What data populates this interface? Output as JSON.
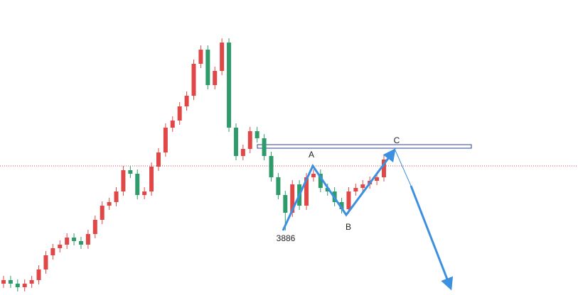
{
  "chart_data": {
    "type": "candlestick",
    "categories": [
      null,
      null,
      null,
      null,
      null,
      null,
      null,
      null,
      null,
      null,
      null,
      null,
      null,
      null,
      null,
      null,
      null,
      null,
      null,
      null,
      null,
      null,
      null,
      null,
      null,
      null,
      null,
      null,
      null,
      null,
      null,
      null,
      null,
      null,
      null,
      null,
      null,
      null,
      null,
      null,
      null,
      null,
      null,
      null,
      null,
      null,
      null,
      null,
      null,
      null,
      null,
      null,
      null,
      null,
      null
    ],
    "open": [
      3511,
      3536,
      3511,
      3486,
      3511,
      3536,
      3611,
      3711,
      3761,
      3786,
      3836,
      3811,
      3786,
      3861,
      3961,
      4061,
      4086,
      4161,
      4311,
      4286,
      4136,
      4161,
      4336,
      4436,
      4611,
      4661,
      4761,
      4836,
      5061,
      5161,
      4911,
      5011,
      5211,
      4611,
      4411,
      4461,
      4586,
      4536,
      4411,
      4261,
      4136,
      4011,
      4211,
      4061,
      4261,
      4286,
      4186,
      4161,
      4086,
      4036,
      4161,
      4186,
      4211,
      4236,
      4261
    ],
    "high": [
      3566,
      3566,
      3541,
      3541,
      3566,
      3641,
      3741,
      3791,
      3816,
      3866,
      3866,
      3841,
      3891,
      3991,
      4091,
      4116,
      4191,
      4341,
      4341,
      4316,
      4191,
      4366,
      4466,
      4641,
      4691,
      4791,
      4866,
      5091,
      5191,
      5191,
      5041,
      5241,
      5241,
      4641,
      4491,
      4616,
      4616,
      4566,
      4441,
      4291,
      4166,
      4241,
      4241,
      4291,
      4316,
      4316,
      4216,
      4191,
      4116,
      4191,
      4216,
      4241,
      4266,
      4291,
      4416
    ],
    "low": [
      3481,
      3481,
      3456,
      3456,
      3481,
      3506,
      3581,
      3681,
      3731,
      3756,
      3781,
      3756,
      3756,
      3831,
      3931,
      4031,
      4056,
      4131,
      4256,
      4106,
      4106,
      4131,
      4306,
      4406,
      4581,
      4631,
      4731,
      4806,
      5031,
      4881,
      4881,
      4981,
      4581,
      4381,
      4381,
      4431,
      4506,
      4381,
      4231,
      4106,
      3886,
      3981,
      4031,
      4031,
      4231,
      4156,
      4131,
      4056,
      4006,
      4006,
      4131,
      4156,
      4181,
      4206,
      4231
    ],
    "close": [
      3536,
      3511,
      3486,
      3511,
      3536,
      3611,
      3711,
      3761,
      3786,
      3836,
      3811,
      3786,
      3861,
      3961,
      4061,
      4086,
      4161,
      4311,
      4286,
      4136,
      4161,
      4336,
      4436,
      4611,
      4661,
      4761,
      4836,
      5061,
      5161,
      4911,
      5011,
      5211,
      4611,
      4411,
      4461,
      4586,
      4536,
      4411,
      4261,
      4136,
      4011,
      4211,
      4061,
      4261,
      4286,
      4186,
      4161,
      4086,
      4036,
      4161,
      4186,
      4211,
      4236,
      4261,
      4386
    ],
    "up_color": "#e04848",
    "down_color": "#2e9c6a",
    "ylim": [
      3431,
      5511
    ],
    "annotations": [
      "A",
      "B",
      "C",
      "3886"
    ]
  }
}
